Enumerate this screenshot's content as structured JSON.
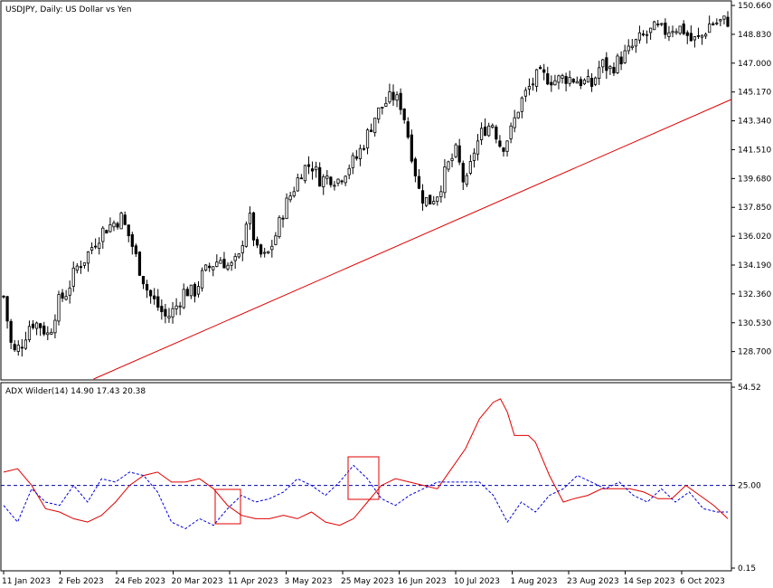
{
  "chart_data": [
    {
      "type": "candlestick",
      "title": "USDJPY, Daily:  US Dollar vs Yen",
      "ylim": [
        126.9,
        150.95
      ],
      "y_ticks": [
        "150.660",
        "148.830",
        "147.000",
        "145.170",
        "143.340",
        "141.510",
        "139.680",
        "137.850",
        "136.020",
        "134.190",
        "132.360",
        "130.530",
        "128.700"
      ],
      "x_ticks": [
        "11 Jan 2023",
        "2 Feb 2023",
        "24 Feb 2023",
        "20 Mar 2023",
        "11 Apr 2023",
        "3 May 2023",
        "25 May 2023",
        "16 Jun 2023",
        "10 Jul 2023",
        "1 Aug 2023",
        "23 Aug 2023",
        "14 Sep 2023",
        "6 Oct 2023"
      ],
      "close_path": [
        [
          0,
          132.2
        ],
        [
          4,
          128.5
        ],
        [
          8,
          129.2
        ],
        [
          12,
          130.6
        ],
        [
          16,
          130.4
        ],
        [
          20,
          129.7
        ],
        [
          24,
          131.8
        ],
        [
          28,
          132.5
        ],
        [
          32,
          134.0
        ],
        [
          36,
          134.6
        ],
        [
          40,
          135.6
        ],
        [
          44,
          136.4
        ],
        [
          48,
          136.8
        ],
        [
          52,
          137.2
        ],
        [
          56,
          135.8
        ],
        [
          60,
          134.0
        ],
        [
          64,
          132.4
        ],
        [
          68,
          131.6
        ],
        [
          72,
          130.8
        ],
        [
          76,
          131.5
        ],
        [
          80,
          132.6
        ],
        [
          84,
          132.4
        ],
        [
          88,
          133.6
        ],
        [
          92,
          134.2
        ],
        [
          96,
          134.6
        ],
        [
          100,
          134.0
        ],
        [
          104,
          134.6
        ],
        [
          108,
          137.6
        ],
        [
          112,
          135.0
        ],
        [
          116,
          134.6
        ],
        [
          120,
          136.0
        ],
        [
          124,
          137.8
        ],
        [
          128,
          139.0
        ],
        [
          132,
          140.3
        ],
        [
          136,
          140.6
        ],
        [
          140,
          139.6
        ],
        [
          144,
          139.8
        ],
        [
          148,
          139.6
        ],
        [
          152,
          140.4
        ],
        [
          156,
          141.0
        ],
        [
          160,
          142.2
        ],
        [
          164,
          143.6
        ],
        [
          168,
          144.4
        ],
        [
          172,
          144.9
        ],
        [
          176,
          144.3
        ],
        [
          180,
          141.5
        ],
        [
          184,
          138.6
        ],
        [
          188,
          138.2
        ],
        [
          192,
          138.8
        ],
        [
          196,
          140.4
        ],
        [
          200,
          141.4
        ],
        [
          204,
          139.0
        ],
        [
          208,
          141.5
        ],
        [
          212,
          142.8
        ],
        [
          216,
          143.2
        ],
        [
          220,
          141.6
        ],
        [
          224,
          142.6
        ],
        [
          228,
          144.4
        ],
        [
          232,
          145.4
        ],
        [
          236,
          146.2
        ],
        [
          240,
          146.1
        ],
        [
          244,
          145.9
        ],
        [
          248,
          146.1
        ],
        [
          252,
          146.0
        ],
        [
          256,
          145.8
        ],
        [
          260,
          145.6
        ],
        [
          264,
          147.0
        ],
        [
          268,
          146.6
        ],
        [
          272,
          147.2
        ],
        [
          276,
          147.7
        ],
        [
          280,
          148.4
        ],
        [
          284,
          148.8
        ],
        [
          288,
          149.2
        ],
        [
          292,
          149.0
        ],
        [
          296,
          149.3
        ],
        [
          300,
          149.2
        ],
        [
          304,
          148.4
        ],
        [
          308,
          148.6
        ],
        [
          312,
          149.5
        ],
        [
          316,
          149.6
        ],
        [
          320,
          149.7
        ]
      ],
      "trendline": {
        "points": [
          [
            19,
            126.9
          ],
          [
            326,
            144.7
          ]
        ],
        "color": "#e00000"
      },
      "candle_up_color": "#ffffff",
      "candle_down_color": "#000000"
    },
    {
      "type": "line",
      "title": "ADX Wilder(14) 14.90 17.43 20.38",
      "ylim": [
        0.15,
        54.52
      ],
      "y_ticks": [
        "54.52",
        "25.00",
        "0.15"
      ],
      "series": [
        {
          "color": "#e00000",
          "style": "solid",
          "points": [
            [
              0,
              29
            ],
            [
              8,
              30
            ],
            [
              16,
              25
            ],
            [
              24,
              18
            ],
            [
              32,
              17
            ],
            [
              40,
              15
            ],
            [
              48,
              14
            ],
            [
              56,
              16
            ],
            [
              64,
              20
            ],
            [
              72,
              25
            ],
            [
              80,
              28
            ],
            [
              88,
              29
            ],
            [
              96,
              26
            ],
            [
              104,
              26
            ],
            [
              112,
              27
            ],
            [
              120,
              24
            ],
            [
              128,
              19
            ],
            [
              136,
              16
            ],
            [
              144,
              15
            ],
            [
              152,
              15
            ],
            [
              160,
              16
            ],
            [
              168,
              15
            ],
            [
              176,
              17
            ],
            [
              184,
              14
            ],
            [
              192,
              13
            ],
            [
              200,
              15
            ],
            [
              208,
              20
            ],
            [
              216,
              25
            ],
            [
              224,
              27
            ],
            [
              232,
              26
            ],
            [
              240,
              25
            ],
            [
              248,
              24
            ],
            [
              256,
              30
            ],
            [
              264,
              36
            ],
            [
              272,
              45
            ],
            [
              280,
              50
            ],
            [
              284,
              51
            ],
            [
              288,
              47
            ],
            [
              292,
              40
            ],
            [
              296,
              40
            ],
            [
              300,
              40
            ],
            [
              304,
              38
            ],
            [
              312,
              28
            ],
            [
              320,
              20
            ],
            [
              326,
              21
            ],
            [
              334,
              22
            ],
            [
              342,
              24
            ],
            [
              350,
              24
            ],
            [
              358,
              24
            ],
            [
              366,
              23
            ],
            [
              374,
              21
            ],
            [
              382,
              21
            ],
            [
              390,
              25
            ],
            [
              398,
              22
            ],
            [
              406,
              19
            ],
            [
              414,
              15
            ]
          ]
        },
        {
          "color": "#0000e0",
          "style": "dashed",
          "points": [
            [
              0,
              19
            ],
            [
              8,
              14
            ],
            [
              16,
              24
            ],
            [
              24,
              20
            ],
            [
              32,
              19
            ],
            [
              40,
              25
            ],
            [
              48,
              20
            ],
            [
              56,
              27
            ],
            [
              64,
              26
            ],
            [
              72,
              29
            ],
            [
              80,
              28
            ],
            [
              88,
              23
            ],
            [
              96,
              14
            ],
            [
              104,
              12
            ],
            [
              112,
              15
            ],
            [
              120,
              13
            ],
            [
              128,
              18
            ],
            [
              136,
              22
            ],
            [
              144,
              20
            ],
            [
              152,
              21
            ],
            [
              160,
              23
            ],
            [
              168,
              27
            ],
            [
              176,
              25
            ],
            [
              184,
              22
            ],
            [
              192,
              26
            ],
            [
              200,
              31
            ],
            [
              208,
              27
            ],
            [
              216,
              21
            ],
            [
              224,
              19
            ],
            [
              232,
              22
            ],
            [
              240,
              24
            ],
            [
              248,
              26
            ],
            [
              256,
              26
            ],
            [
              264,
              26
            ],
            [
              272,
              26
            ],
            [
              280,
              22
            ],
            [
              288,
              14
            ],
            [
              296,
              20
            ],
            [
              304,
              17
            ],
            [
              312,
              22
            ],
            [
              320,
              24
            ],
            [
              328,
              28
            ],
            [
              336,
              26
            ],
            [
              344,
              24
            ],
            [
              352,
              26
            ],
            [
              360,
              22
            ],
            [
              368,
              20
            ],
            [
              376,
              24
            ],
            [
              384,
              20
            ],
            [
              392,
              23
            ],
            [
              400,
              18
            ],
            [
              408,
              17
            ],
            [
              414,
              17
            ]
          ]
        }
      ],
      "level": {
        "value": 25.0,
        "color": "#0000aa",
        "style": "dashed"
      },
      "annotation_box_color": "#e00000"
    }
  ]
}
